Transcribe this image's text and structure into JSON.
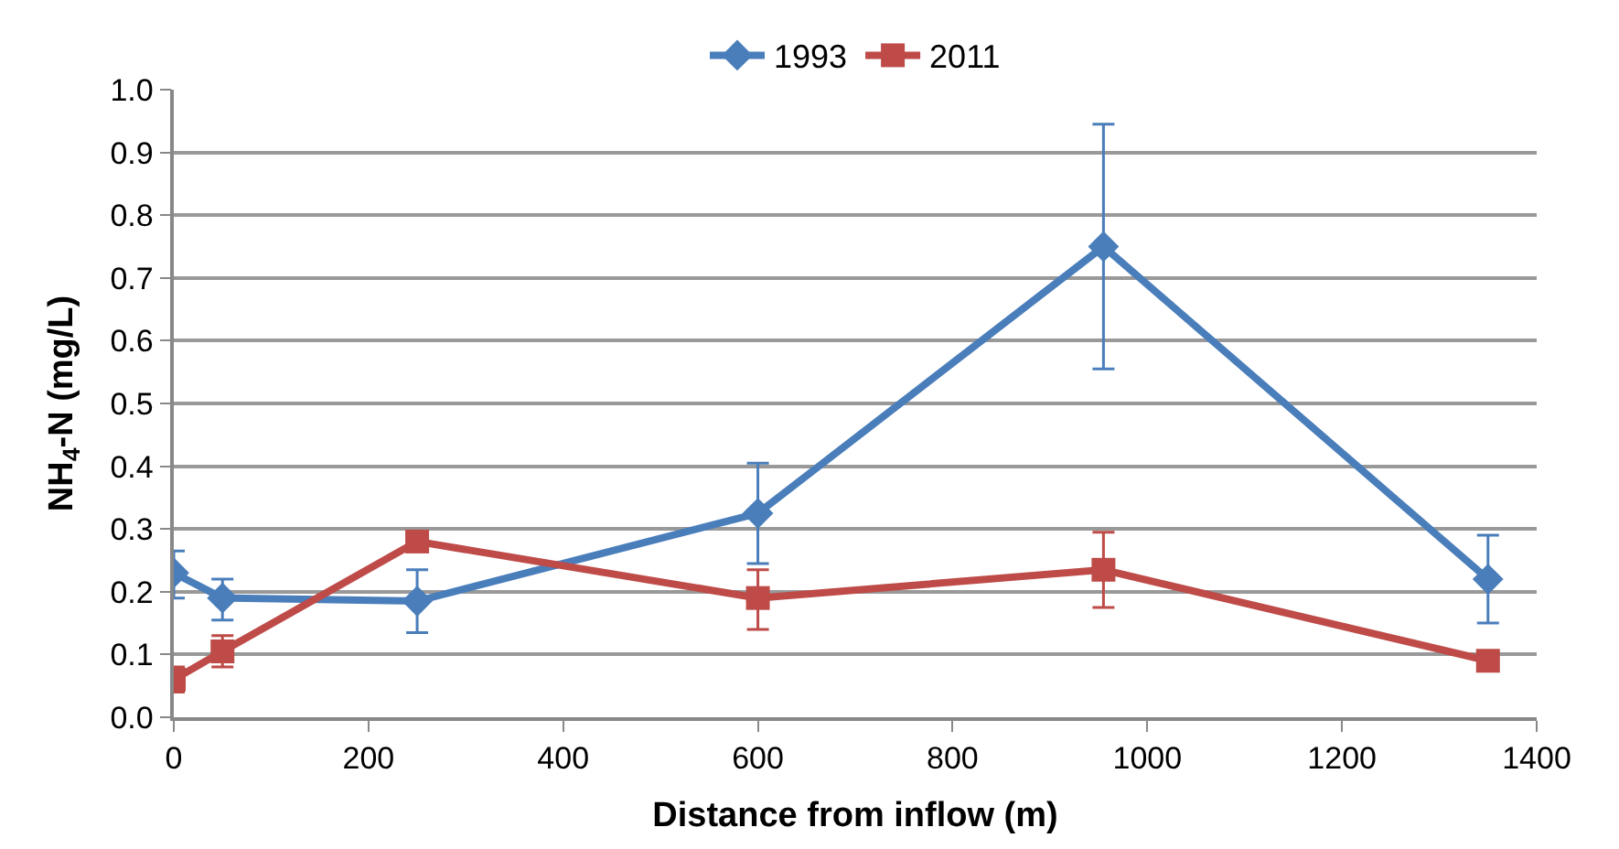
{
  "chart_data": {
    "type": "line",
    "xlabel": "Distance from inflow (m)",
    "ylabel": "NH$_{4}$-N (mg/L)",
    "xlim": [
      0,
      1400
    ],
    "xticks": [
      0,
      200,
      400,
      600,
      800,
      1000,
      1200,
      1400
    ],
    "ylim": [
      0,
      1.0
    ],
    "yticks": [
      {
        "value": 0,
        "label": "0.0"
      },
      {
        "value": 0.1,
        "label": "0.1"
      },
      {
        "value": 0.2,
        "label": "0.2"
      },
      {
        "value": 0.3,
        "label": "0.3"
      },
      {
        "value": 0.4,
        "label": "0.4"
      },
      {
        "value": 0.5,
        "label": "0.5"
      },
      {
        "value": 0.6,
        "label": "0.6"
      },
      {
        "value": 0.7,
        "label": "0.7"
      },
      {
        "value": 0.8,
        "label": "0.8"
      },
      {
        "value": 0.9,
        "label": "0.9"
      },
      {
        "value": 1.0,
        "label": "1.0"
      }
    ],
    "grid": "y",
    "legend": "top",
    "series": [
      {
        "name": "1993",
        "color": "#4a7ebb",
        "marker": "diamond",
        "x": [
          0,
          50,
          250,
          600,
          955,
          1350
        ],
        "values": [
          0.23,
          0.19,
          0.185,
          0.325,
          0.75,
          0.22
        ],
        "errors": [
          [
            0.19,
            0.265
          ],
          [
            0.155,
            0.22
          ],
          [
            0.135,
            0.235
          ],
          [
            0.245,
            0.405
          ],
          [
            0.555,
            0.945
          ],
          [
            0.15,
            0.29
          ]
        ]
      },
      {
        "name": "2011",
        "color": "#be4b48",
        "marker": "square",
        "x": [
          0,
          50,
          250,
          600,
          955,
          1350
        ],
        "values": [
          0.06,
          0.105,
          0.28,
          0.19,
          0.235,
          0.09
        ],
        "errors": [
          [
            0.04,
            0.08
          ],
          [
            0.08,
            0.13
          ],
          null,
          [
            0.14,
            0.235
          ],
          [
            0.175,
            0.295
          ],
          null
        ]
      }
    ]
  }
}
